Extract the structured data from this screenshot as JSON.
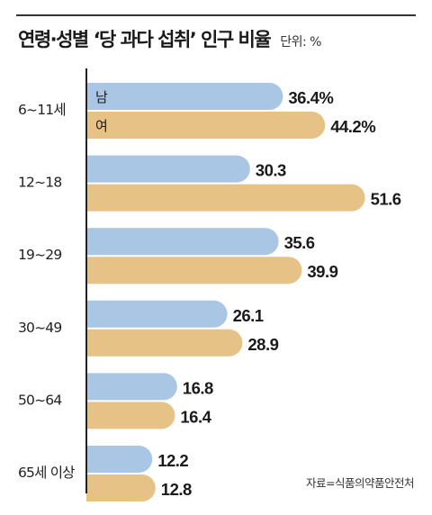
{
  "title": "연령·성별 ‘당 과다 섭취’ 인구 비율",
  "unit_label": "단위: %",
  "source": "자료=식품의약품안전처",
  "colors": {
    "male": "#a9c6e4",
    "female": "#e6c287",
    "axis": "#222222"
  },
  "chart_data": {
    "type": "bar",
    "orientation": "horizontal",
    "categories": [
      "6~11세",
      "12~18",
      "19~29",
      "30~49",
      "50~64",
      "65세 이상"
    ],
    "series": [
      {
        "name": "남",
        "values": [
          36.4,
          30.3,
          35.6,
          26.1,
          16.8,
          12.2
        ],
        "labels": [
          "36.4%",
          "30.3",
          "35.6",
          "26.1",
          "16.8",
          "12.2"
        ]
      },
      {
        "name": "여",
        "values": [
          44.2,
          51.6,
          39.9,
          28.9,
          16.4,
          12.8
        ],
        "labels": [
          "44.2%",
          "51.6",
          "39.9",
          "28.9",
          "16.4",
          "12.8"
        ]
      }
    ],
    "grid": false,
    "legend": "inside first bars"
  }
}
